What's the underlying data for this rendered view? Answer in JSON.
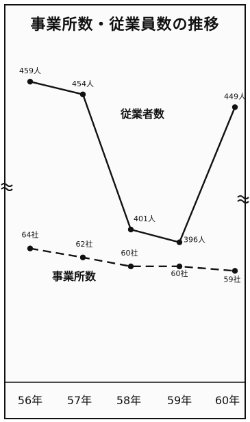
{
  "chart_data": {
    "type": "line",
    "title": "事業所数・従業員数の推移",
    "categories": [
      "56年",
      "57年",
      "58年",
      "59年",
      "60年"
    ],
    "series": [
      {
        "name": "従業者数",
        "values": [
          459,
          454,
          401,
          396,
          449
        ],
        "labels": [
          "459人",
          "454人",
          "401人",
          "396人",
          "449人"
        ],
        "style": "solid",
        "ylim": [
          390,
          462
        ]
      },
      {
        "name": "事業所数",
        "values": [
          64,
          62,
          60,
          60,
          59
        ],
        "labels": [
          "64社",
          "62社",
          "60社",
          "60社",
          "59社"
        ],
        "style": "dashed",
        "ylim": [
          56,
          69
        ]
      }
    ],
    "axis_break": true,
    "grid": false,
    "legend": "inline labels"
  },
  "colors": {
    "ink": "#111111",
    "background": "#fbfbfb"
  }
}
